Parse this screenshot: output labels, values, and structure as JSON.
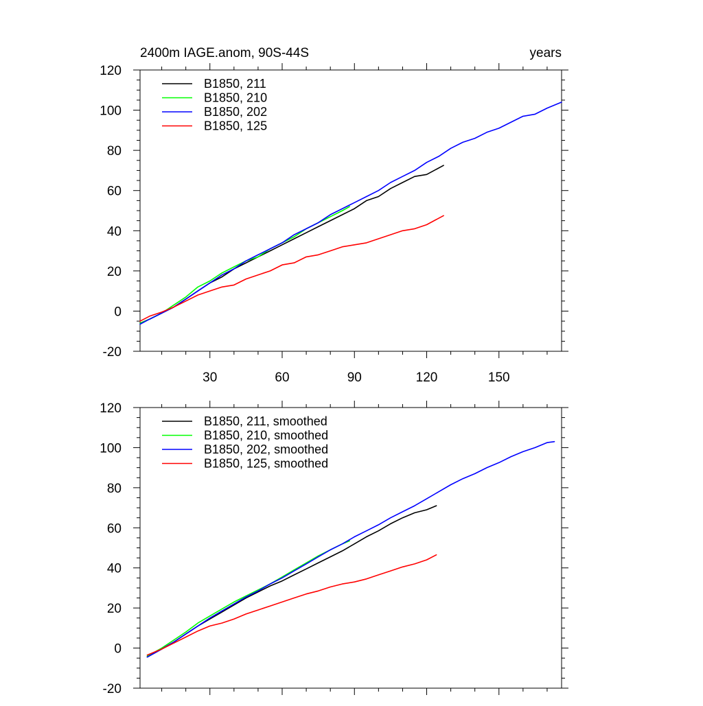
{
  "chart_data": [
    {
      "type": "line",
      "title": "2400m IAGE.anom, 90S-44S",
      "right_title": "years",
      "xlim": [
        1,
        176
      ],
      "ylim": [
        -20,
        120
      ],
      "yticks": [
        -20,
        0,
        20,
        40,
        60,
        80,
        100,
        120
      ],
      "y_minor_step": 5,
      "xticks": [
        30,
        60,
        90,
        120,
        150
      ],
      "x_minor_step": 10,
      "show_xtick_labels": true,
      "legend_position": "top-left",
      "grid": false,
      "series": [
        {
          "name": "B1850, 211",
          "color": "#000000",
          "x": [
            1,
            5,
            10,
            15,
            20,
            25,
            30,
            35,
            40,
            45,
            50,
            55,
            60,
            65,
            70,
            75,
            80,
            85,
            90,
            95,
            100,
            105,
            110,
            115,
            120,
            127
          ],
          "y": [
            -6,
            -4,
            -1,
            2,
            6,
            10,
            14,
            17,
            21,
            24,
            27,
            30,
            33,
            36,
            39,
            42,
            45,
            48,
            51,
            55,
            57,
            61,
            64,
            67,
            68,
            72.5
          ]
        },
        {
          "name": "B1850, 210",
          "color": "#00ff00",
          "x": [
            1,
            5,
            10,
            15,
            20,
            25,
            30,
            35,
            40,
            45,
            50,
            55,
            60,
            65,
            70,
            75,
            80,
            85,
            88
          ],
          "y": [
            -6,
            -4,
            -1,
            3,
            7,
            12,
            15,
            19,
            22,
            25,
            27,
            31,
            34,
            37,
            41,
            44,
            47,
            50,
            52
          ]
        },
        {
          "name": "B1850, 202",
          "color": "#0000ff",
          "x": [
            1,
            5,
            10,
            15,
            20,
            25,
            30,
            35,
            40,
            45,
            50,
            55,
            60,
            65,
            70,
            75,
            80,
            85,
            90,
            95,
            100,
            105,
            110,
            115,
            120,
            125,
            130,
            135,
            140,
            145,
            150,
            155,
            160,
            165,
            170,
            176
          ],
          "y": [
            -6.5,
            -4,
            -1,
            2,
            6,
            10,
            14,
            18,
            21,
            25,
            28,
            31,
            34,
            38,
            41,
            44,
            48,
            51,
            54,
            57,
            60,
            64,
            67,
            70,
            74,
            77,
            81,
            84,
            86,
            89,
            91,
            94,
            97,
            98,
            101,
            104
          ]
        },
        {
          "name": "B1850, 125",
          "color": "#ff0000",
          "x": [
            1,
            5,
            10,
            15,
            20,
            25,
            30,
            35,
            40,
            45,
            50,
            55,
            60,
            65,
            70,
            75,
            80,
            85,
            90,
            95,
            100,
            105,
            110,
            115,
            120,
            127
          ],
          "y": [
            -5,
            -2.5,
            -0.5,
            2,
            5,
            8,
            10,
            12,
            13,
            16,
            18,
            20,
            23,
            24,
            27,
            28,
            30,
            32,
            33,
            34,
            36,
            38,
            40,
            41,
            43,
            47.5
          ]
        }
      ]
    },
    {
      "type": "line",
      "title": "",
      "xlim": [
        1,
        176
      ],
      "ylim": [
        -20,
        120
      ],
      "yticks": [
        -20,
        0,
        20,
        40,
        60,
        80,
        100,
        120
      ],
      "y_minor_step": 5,
      "xticks": [
        30,
        60,
        90,
        120,
        150
      ],
      "x_minor_step": 10,
      "show_xtick_labels": false,
      "legend_position": "top-left",
      "grid": false,
      "series": [
        {
          "name": "B1850, 211, smoothed",
          "color": "#000000",
          "x": [
            4,
            10,
            15,
            20,
            25,
            30,
            35,
            40,
            45,
            50,
            55,
            60,
            65,
            70,
            75,
            80,
            85,
            90,
            95,
            100,
            105,
            110,
            115,
            120,
            124
          ],
          "y": [
            -4.5,
            -0.5,
            3,
            7,
            11,
            14.5,
            18,
            21.5,
            25,
            28,
            31,
            33.5,
            36.5,
            39.5,
            42.5,
            45.5,
            48.5,
            52,
            55.5,
            58.5,
            62,
            65,
            67.5,
            69,
            71
          ]
        },
        {
          "name": "B1850, 210, smoothed",
          "color": "#00ff00",
          "x": [
            4,
            10,
            15,
            20,
            25,
            30,
            35,
            40,
            45,
            50,
            55,
            60,
            65,
            70,
            75,
            80,
            85,
            88
          ],
          "y": [
            -4,
            0,
            4,
            8,
            12.5,
            16,
            19.5,
            23,
            26,
            29,
            32,
            35.5,
            39,
            42.5,
            46,
            49,
            52,
            53.5
          ]
        },
        {
          "name": "B1850, 202, smoothed",
          "color": "#0000ff",
          "x": [
            4,
            10,
            15,
            20,
            25,
            30,
            35,
            40,
            45,
            50,
            55,
            60,
            65,
            70,
            75,
            80,
            85,
            90,
            95,
            100,
            105,
            110,
            115,
            120,
            125,
            130,
            135,
            140,
            145,
            150,
            155,
            160,
            165,
            170,
            173
          ],
          "y": [
            -4.5,
            -0.5,
            3,
            7,
            11,
            15,
            18.5,
            22,
            25.5,
            28.5,
            32,
            35,
            38.5,
            42,
            45.5,
            49,
            52,
            55.5,
            58.5,
            61.5,
            65,
            68,
            71,
            74.5,
            78,
            81.5,
            84.5,
            87,
            90,
            92.5,
            95.5,
            98,
            100,
            102.5,
            103
          ]
        },
        {
          "name": "B1850, 125, smoothed",
          "color": "#ff0000",
          "x": [
            4,
            10,
            15,
            20,
            25,
            30,
            35,
            40,
            45,
            50,
            55,
            60,
            65,
            70,
            75,
            80,
            85,
            90,
            95,
            100,
            105,
            110,
            115,
            120,
            124
          ],
          "y": [
            -3.5,
            -0.5,
            2.5,
            5.5,
            8.5,
            11,
            12.5,
            14.5,
            17,
            19,
            21,
            23,
            25,
            27,
            28.5,
            30.5,
            32,
            33,
            34.5,
            36.5,
            38.5,
            40.5,
            42,
            44,
            46.5
          ]
        }
      ]
    }
  ]
}
